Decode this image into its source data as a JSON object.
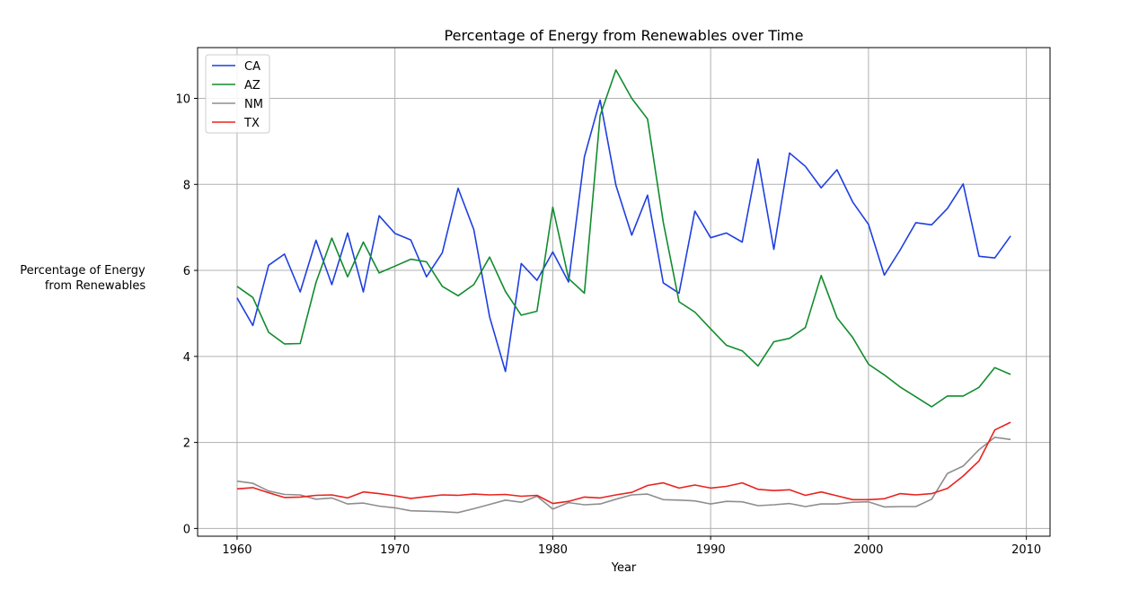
{
  "chart_data": {
    "type": "line",
    "title": "Percentage of Energy from Renewables over Time",
    "xlabel": "Year",
    "ylabel_lines": [
      "Percentage of Energy",
      "from Renewables"
    ],
    "xlim": [
      1957.5,
      2011.5
    ],
    "ylim": [
      -0.18,
      11.18
    ],
    "xticks": [
      1960,
      1970,
      1980,
      1990,
      2000,
      2010
    ],
    "yticks": [
      0,
      2,
      4,
      6,
      8,
      10
    ],
    "grid": true,
    "legend_position": "top-left",
    "x": [
      1960,
      1961,
      1962,
      1963,
      1964,
      1965,
      1966,
      1967,
      1968,
      1969,
      1970,
      1971,
      1972,
      1973,
      1974,
      1975,
      1976,
      1977,
      1978,
      1979,
      1980,
      1981,
      1982,
      1983,
      1984,
      1985,
      1986,
      1987,
      1988,
      1989,
      1990,
      1991,
      1992,
      1993,
      1994,
      1995,
      1996,
      1997,
      1998,
      1999,
      2000,
      2001,
      2002,
      2003,
      2004,
      2005,
      2006,
      2007,
      2008,
      2009
    ],
    "series": [
      {
        "name": "CA",
        "color": "#1f3fe0",
        "values": [
          5.36,
          4.72,
          6.12,
          6.38,
          5.5,
          6.7,
          5.67,
          6.87,
          5.5,
          7.27,
          6.86,
          6.71,
          5.85,
          6.41,
          7.91,
          6.95,
          4.92,
          3.65,
          6.16,
          5.77,
          6.43,
          5.73,
          8.64,
          9.96,
          7.98,
          6.82,
          7.75,
          5.71,
          5.47,
          7.38,
          6.76,
          6.87,
          6.66,
          8.59,
          6.49,
          8.73,
          8.42,
          7.92,
          8.34,
          7.59,
          7.07,
          5.89,
          6.47,
          7.11,
          7.06,
          7.44,
          8.01,
          6.33,
          6.29,
          6.8
        ]
      },
      {
        "name": "AZ",
        "color": "#118c2e",
        "values": [
          5.63,
          5.37,
          4.56,
          4.29,
          4.3,
          5.72,
          6.75,
          5.85,
          6.66,
          5.94,
          6.1,
          6.26,
          6.2,
          5.63,
          5.41,
          5.67,
          6.31,
          5.51,
          4.96,
          5.05,
          7.47,
          5.81,
          5.47,
          9.6,
          10.66,
          10.0,
          9.52,
          7.12,
          5.27,
          5.03,
          4.64,
          4.26,
          4.13,
          3.78,
          4.34,
          4.42,
          4.67,
          5.88,
          4.9,
          4.44,
          3.82,
          3.57,
          3.29,
          3.06,
          2.83,
          3.08,
          3.08,
          3.28,
          3.74,
          3.58
        ]
      },
      {
        "name": "NM",
        "color": "#8e8e8e",
        "values": [
          1.1,
          1.05,
          0.87,
          0.79,
          0.78,
          0.68,
          0.71,
          0.57,
          0.59,
          0.52,
          0.48,
          0.41,
          0.4,
          0.39,
          0.37,
          0.46,
          0.56,
          0.66,
          0.61,
          0.75,
          0.45,
          0.6,
          0.55,
          0.57,
          0.68,
          0.78,
          0.8,
          0.67,
          0.66,
          0.64,
          0.57,
          0.63,
          0.62,
          0.53,
          0.55,
          0.58,
          0.51,
          0.57,
          0.57,
          0.61,
          0.62,
          0.5,
          0.51,
          0.51,
          0.68,
          1.28,
          1.45,
          1.83,
          2.12,
          2.07
        ]
      },
      {
        "name": "TX",
        "color": "#e8231f",
        "values": [
          0.92,
          0.95,
          0.83,
          0.72,
          0.73,
          0.77,
          0.78,
          0.71,
          0.85,
          0.81,
          0.76,
          0.7,
          0.74,
          0.78,
          0.77,
          0.8,
          0.78,
          0.79,
          0.75,
          0.77,
          0.58,
          0.63,
          0.73,
          0.71,
          0.78,
          0.84,
          1.0,
          1.06,
          0.94,
          1.01,
          0.94,
          0.98,
          1.06,
          0.91,
          0.88,
          0.9,
          0.77,
          0.85,
          0.76,
          0.67,
          0.67,
          0.69,
          0.81,
          0.78,
          0.81,
          0.93,
          1.22,
          1.57,
          2.29,
          2.47
        ]
      }
    ]
  }
}
